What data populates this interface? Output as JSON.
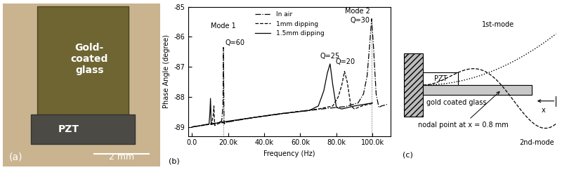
{
  "panel_a": {
    "label": "(a)",
    "glass": "Gold-\ncoated\nglass",
    "pzt": "PZT",
    "scale_bar": "2 mm"
  },
  "chart_data": {
    "type": "line",
    "panel_label": "(b)",
    "x_label": "Frequency (Hz)",
    "y_label": "Phase Angle (degree)",
    "xlim": [
      -2000,
      110000
    ],
    "xticks": [
      {
        "value": 0,
        "label": "0.0"
      },
      {
        "value": 20000,
        "label": "20.0k"
      },
      {
        "value": 40000,
        "label": "40.0k"
      },
      {
        "value": 60000,
        "label": "60.0k"
      },
      {
        "value": 80000,
        "label": "80.0k"
      },
      {
        "value": 100000,
        "label": "100.0k"
      }
    ],
    "ylim": [
      -89.3,
      -85
    ],
    "yticks": [
      -89,
      -88,
      -87,
      -86,
      -85
    ],
    "legend": "upper center",
    "series": [
      {
        "name": "In air",
        "color": "#000000",
        "line_style": "dashdot",
        "x": [
          0,
          5000,
          10000,
          15000,
          16500,
          17200,
          17500,
          17800,
          18500,
          25000,
          35000,
          45000,
          55000,
          65000,
          75000,
          85000,
          92000,
          95000,
          97000,
          98500,
          99500,
          100500,
          102000,
          103500,
          105000,
          108000
        ],
        "values": [
          -89.0,
          -88.95,
          -88.9,
          -88.85,
          -88.8,
          -88.3,
          -86.35,
          -88.9,
          -88.85,
          -88.78,
          -88.68,
          -88.6,
          -88.52,
          -88.45,
          -88.38,
          -88.32,
          -88.2,
          -87.9,
          -87.3,
          -86.2,
          -85.4,
          -86.3,
          -87.9,
          -88.35,
          -88.3,
          -88.25
        ]
      },
      {
        "name": "1mm dipping",
        "color": "#000000",
        "line_style": "dashed",
        "x": [
          0,
          6000,
          11000,
          11800,
          12200,
          12600,
          15000,
          30000,
          50000,
          70000,
          78000,
          81000,
          83000,
          84500,
          86000,
          88000,
          90000,
          95000,
          100000
        ],
        "values": [
          -89.0,
          -88.95,
          -88.9,
          -88.6,
          -88.3,
          -88.95,
          -88.88,
          -88.72,
          -88.55,
          -88.4,
          -88.3,
          -88.0,
          -87.6,
          -87.15,
          -87.5,
          -88.3,
          -88.4,
          -88.28,
          -88.22
        ]
      },
      {
        "name": "1.5mm dipping",
        "color": "#000000",
        "line_style": "solid",
        "x": [
          0,
          5000,
          9500,
          10000,
          10300,
          10700,
          15000,
          30000,
          50000,
          65000,
          70000,
          73000,
          75000,
          76500,
          78000,
          80000,
          83000,
          90000,
          100000
        ],
        "values": [
          -89.0,
          -88.95,
          -88.9,
          -88.5,
          -88.05,
          -88.92,
          -88.85,
          -88.72,
          -88.55,
          -88.45,
          -88.3,
          -87.8,
          -87.2,
          -86.9,
          -87.6,
          -88.35,
          -88.4,
          -88.3,
          -88.2
        ]
      }
    ],
    "annotations": [
      {
        "text": "Mode 1",
        "x": 17500,
        "y": -85.75
      },
      {
        "text": "Q=60",
        "x": 18500,
        "y": -86.2
      },
      {
        "text": "Mode 2",
        "x": 98500,
        "y": -85.15
      },
      {
        "text": "Q=30",
        "x": 98500,
        "y": -85.45
      },
      {
        "text": "Q=25",
        "x": 76500,
        "y": -86.75
      },
      {
        "text": "Q=20",
        "x": 85000,
        "y": -86.95
      }
    ],
    "guide_lines_x": [
      17500,
      99500
    ]
  },
  "panel_c": {
    "label": "(c)",
    "pzt": "PZT",
    "glass": "gold coated glass",
    "mode_1": "1st-mode",
    "mode_2": "2nd-mode",
    "nodal": "nodal point at x = 0.8 mm",
    "axis": "x"
  }
}
